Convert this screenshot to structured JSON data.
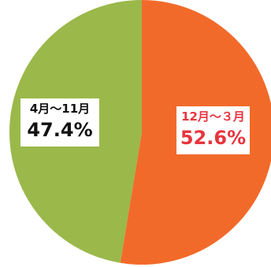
{
  "chart_data": {
    "type": "pie",
    "title": "",
    "slices": [
      {
        "label": "4月～11月",
        "value": 47.4,
        "value_label": "47.4%",
        "color": "#9bb84a"
      },
      {
        "label": "12月～３月",
        "value": 52.6,
        "value_label": "52.6%",
        "color": "#f26a2a"
      }
    ],
    "start": "top",
    "direction": "clockwise-from-second-slice",
    "legend": "none"
  }
}
